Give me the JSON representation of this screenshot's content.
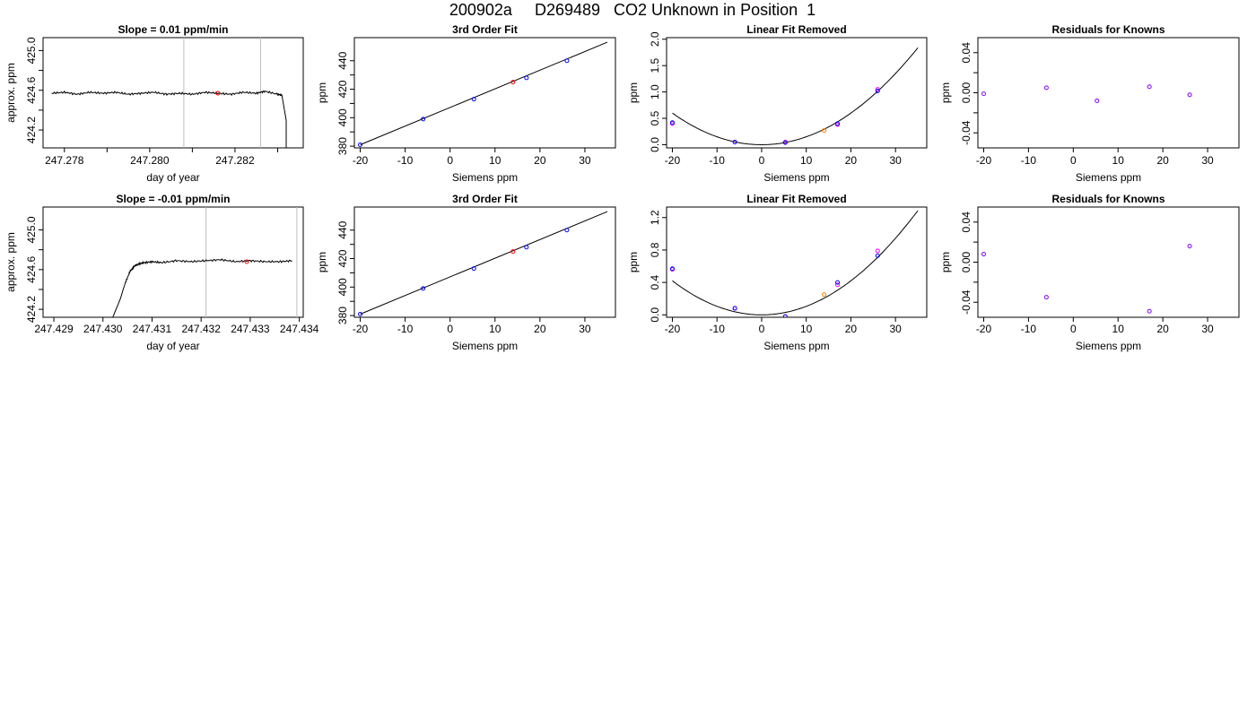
{
  "page": {
    "title": "200902a     D269489   CO2 Unknown in Position  1"
  },
  "colors": {
    "known": "#0000ff",
    "unknown_fit": "#ff0000",
    "unknown_linear": "#ff8000",
    "residual": "#8000ff",
    "alt_known": "#ff00ff",
    "window_line": "#bebebe"
  },
  "chart_data": [
    {
      "type": "line",
      "title": "Slope =  0.01  ppm/min",
      "xlabel": "day of year",
      "ylabel": "approx. ppm",
      "xlim": [
        247.2775,
        247.2836
      ],
      "ylim": [
        424.02,
        425.13
      ],
      "xticks": [
        247.278,
        247.28,
        247.282
      ],
      "xtick_labels": [
        "247.278",
        "247.280",
        "247.282"
      ],
      "xticks_minor": [
        247.279,
        247.281,
        247.283
      ],
      "yticks": [
        424.2,
        424.6,
        425.0
      ],
      "ytick_labels": [
        "424.2",
        "424.6",
        "425.0"
      ],
      "yticks_minor": [
        424.4,
        424.8
      ],
      "series": [
        {
          "x": [
            247.2777,
            247.278,
            247.2783,
            247.2786,
            247.2789,
            247.2792,
            247.2795,
            247.2798,
            247.2801,
            247.2804,
            247.2807,
            247.281,
            247.2813,
            247.2816,
            247.2819,
            247.2822,
            247.2825,
            247.2827,
            247.283,
            247.2831,
            247.2832,
            247.2832
          ],
          "y": [
            424.57,
            424.58,
            424.56,
            424.58,
            424.57,
            424.58,
            424.56,
            424.57,
            424.58,
            424.56,
            424.57,
            424.56,
            424.58,
            424.57,
            424.56,
            424.58,
            424.57,
            424.59,
            424.56,
            424.55,
            424.3,
            424.02
          ]
        }
      ],
      "vlines": [
        247.2808,
        247.2826
      ],
      "marker": {
        "x": 247.2816,
        "y": 424.57
      }
    },
    {
      "type": "scatter",
      "title": "3rd Order Fit",
      "xlabel": "Siemens ppm",
      "ylabel": "ppm",
      "xlim": [
        -21.3,
        36.8
      ],
      "ylim": [
        378.8,
        456.2
      ],
      "xticks": [
        -20,
        -10,
        0,
        10,
        20,
        30
      ],
      "yticks": [
        380,
        400,
        420,
        440
      ],
      "yticks_minor": [
        390,
        410,
        430
      ],
      "fit_line": [
        [
          -20,
          381
        ],
        [
          35,
          453
        ]
      ],
      "knowns": {
        "x": [
          -20.0,
          -6.0,
          5.3,
          17.0,
          26.0
        ],
        "y": [
          381,
          399,
          413,
          428,
          440
        ]
      },
      "unknown": {
        "x": 14.0,
        "y": 425
      }
    },
    {
      "type": "scatter",
      "title": "Linear Fit Removed",
      "xlabel": "Siemens ppm",
      "ylabel": "ppm",
      "xlim": [
        -21.3,
        37.0
      ],
      "ylim": [
        -0.06,
        2.03
      ],
      "xticks": [
        -20,
        -10,
        0,
        10,
        20,
        30
      ],
      "yticks": [
        0.0,
        0.5,
        1.0,
        1.5,
        2.0
      ],
      "yticks_labels": [
        "0.0",
        "0.5",
        "1.0",
        "1.5",
        "2.0"
      ],
      "curve_coefficient": 0.0015,
      "curve_range": [
        -20,
        35
      ],
      "knowns": {
        "x": [
          -20.0,
          -6.0,
          5.3,
          17.0,
          26.0
        ],
        "y": [
          0.42,
          0.05,
          0.04,
          0.4,
          1.02
        ]
      },
      "alt_knowns": {
        "x": [
          -20.0,
          -6.0,
          5.3,
          17.0,
          26.0
        ],
        "y": [
          0.4,
          0.05,
          0.05,
          0.38,
          1.05
        ]
      },
      "unknown": {
        "x": 14.0,
        "y": 0.27
      }
    },
    {
      "type": "scatter",
      "title": "Residuals for Knowns",
      "xlabel": "Siemens ppm",
      "ylabel": "ppm",
      "xlim": [
        -21.3,
        37.0
      ],
      "ylim": [
        -0.055,
        0.055
      ],
      "xticks": [
        -20,
        -10,
        0,
        10,
        20,
        30
      ],
      "yticks": [
        -0.04,
        0.0,
        0.04
      ],
      "ytick_labels": [
        "-0.04",
        "0.00",
        "0.04"
      ],
      "yticks_minor": [
        -0.02,
        0.02
      ],
      "points": {
        "x": [
          -20.0,
          -6.0,
          5.3,
          17.0,
          26.0
        ],
        "y": [
          -0.001,
          0.005,
          -0.008,
          0.006,
          -0.002
        ]
      }
    },
    {
      "type": "line",
      "title": "Slope =  -0.01  ppm/min",
      "xlabel": "day of year",
      "ylabel": "approx. ppm",
      "xlim": [
        247.42878,
        247.43408
      ],
      "ylim": [
        424.12,
        425.23
      ],
      "xticks": [
        247.429,
        247.43,
        247.431,
        247.432,
        247.433,
        247.434
      ],
      "xtick_labels": [
        "247.429",
        "247.430",
        "247.431",
        "247.432",
        "247.433",
        "247.434"
      ],
      "yticks": [
        424.2,
        424.6,
        425.0
      ],
      "ytick_labels": [
        "424.2",
        "424.6",
        "425.0"
      ],
      "yticks_minor": [
        424.4,
        424.8
      ],
      "series": [
        {
          "x": [
            247.4302,
            247.43035,
            247.43045,
            247.43055,
            247.43065,
            247.43075,
            247.43085,
            247.431,
            247.4312,
            247.4315,
            247.4318,
            247.4321,
            247.4324,
            247.4327,
            247.433,
            247.4333,
            247.4336,
            247.43385
          ],
          "y": [
            424.12,
            424.3,
            424.46,
            424.58,
            424.64,
            424.66,
            424.67,
            424.68,
            424.67,
            424.69,
            424.68,
            424.69,
            424.7,
            424.68,
            424.69,
            424.68,
            424.68,
            424.69
          ]
        }
      ],
      "vlines": [
        247.4321,
        247.43395
      ],
      "marker": {
        "x": 247.43293,
        "y": 424.68
      }
    },
    {
      "type": "scatter",
      "title": "3rd Order Fit",
      "xlabel": "Siemens ppm",
      "ylabel": "ppm",
      "xlim": [
        -21.3,
        36.8
      ],
      "ylim": [
        378.8,
        456.2
      ],
      "xticks": [
        -20,
        -10,
        0,
        10,
        20,
        30
      ],
      "yticks": [
        380,
        400,
        420,
        440
      ],
      "yticks_minor": [
        390,
        410,
        430
      ],
      "fit_line": [
        [
          -20,
          381
        ],
        [
          35,
          453
        ]
      ],
      "knowns": {
        "x": [
          -20.0,
          -6.0,
          5.3,
          17.0,
          26.0
        ],
        "y": [
          381,
          399,
          413,
          428,
          440
        ]
      },
      "unknown": {
        "x": 14.0,
        "y": 425
      }
    },
    {
      "type": "scatter",
      "title": "Linear Fit Removed",
      "xlabel": "Siemens ppm",
      "ylabel": "ppm",
      "xlim": [
        -21.3,
        37.0
      ],
      "ylim": [
        -0.03,
        1.33
      ],
      "xticks": [
        -20,
        -10,
        0,
        10,
        20,
        30
      ],
      "yticks": [
        0.0,
        0.4,
        0.8,
        1.2
      ],
      "yticks_labels": [
        "0.0",
        "0.4",
        "0.8",
        "1.2"
      ],
      "curve_coefficient": 0.00105,
      "curve_range": [
        -20,
        35
      ],
      "knowns": {
        "x": [
          -20.0,
          -6.0,
          5.3,
          17.0,
          26.0
        ],
        "y": [
          0.57,
          0.08,
          -0.02,
          0.4,
          0.73
        ]
      },
      "alt_knowns": {
        "x": [
          -20.0,
          -6.0,
          5.3,
          17.0,
          26.0
        ],
        "y": [
          0.56,
          0.08,
          -0.02,
          0.37,
          0.79
        ]
      },
      "unknown": {
        "x": 14.0,
        "y": 0.25
      }
    },
    {
      "type": "scatter",
      "title": "Residuals for Knowns",
      "xlabel": "Siemens ppm",
      "ylabel": "ppm",
      "xlim": [
        -21.3,
        37.0
      ],
      "ylim": [
        -0.055,
        0.055
      ],
      "xticks": [
        -20,
        -10,
        0,
        10,
        20,
        30
      ],
      "yticks": [
        -0.04,
        0.0,
        0.04
      ],
      "ytick_labels": [
        "-0.04",
        "0.00",
        "0.04"
      ],
      "yticks_minor": [
        -0.02,
        0.02
      ],
      "points": {
        "x": [
          -20.0,
          -6.0,
          17.0,
          26.0
        ],
        "y": [
          0.008,
          -0.035,
          -0.049,
          0.016
        ]
      }
    }
  ]
}
